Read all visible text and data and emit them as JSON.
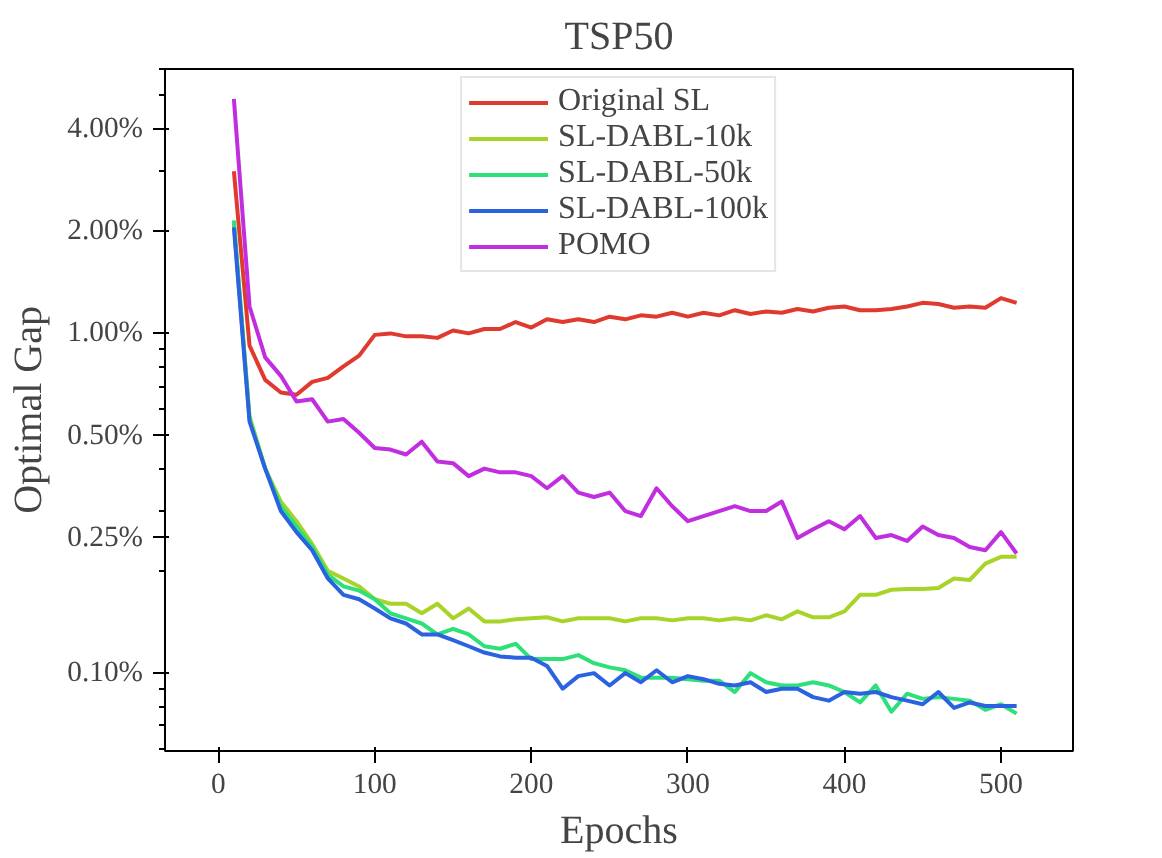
{
  "chart_data": {
    "type": "line",
    "title": "TSP50",
    "xlabel": "Epochs",
    "ylabel": "Optimal Gap",
    "log": "y",
    "grid": false,
    "legend": "top",
    "marker": "none",
    "line_style": "solid",
    "x": [
      10,
      20,
      30,
      40,
      50,
      60,
      70,
      80,
      90,
      100,
      110,
      120,
      130,
      140,
      150,
      160,
      170,
      180,
      190,
      200,
      210,
      220,
      230,
      240,
      250,
      260,
      270,
      280,
      290,
      300,
      310,
      320,
      330,
      340,
      350,
      360,
      370,
      380,
      390,
      400,
      410,
      420,
      430,
      440,
      450,
      460,
      470,
      480,
      490,
      500,
      510
    ],
    "xlim": [
      -34,
      546
    ],
    "xticks": [
      0,
      100,
      200,
      300,
      400,
      500
    ],
    "ylim": [
      0.059,
      6.0
    ],
    "yticks": [
      {
        "value": 0.06,
        "label": null
      },
      {
        "value": 0.07,
        "label": null
      },
      {
        "value": 0.08,
        "label": null
      },
      {
        "value": 0.09,
        "label": null
      },
      {
        "value": 0.1,
        "label": "0.10%"
      },
      {
        "value": 0.2,
        "label": null
      },
      {
        "value": 0.25,
        "label": "0.25%"
      },
      {
        "value": 0.3,
        "label": null
      },
      {
        "value": 0.4,
        "label": null
      },
      {
        "value": 0.5,
        "label": "0.50%"
      },
      {
        "value": 0.6,
        "label": null
      },
      {
        "value": 0.7,
        "label": null
      },
      {
        "value": 0.8,
        "label": null
      },
      {
        "value": 0.9,
        "label": null
      },
      {
        "value": 1.0,
        "label": "1.00%"
      },
      {
        "value": 2.0,
        "label": "2.00%"
      },
      {
        "value": 3.0,
        "label": null
      },
      {
        "value": 4.0,
        "label": "4.00%"
      },
      {
        "value": 5.0,
        "label": null
      },
      {
        "value": 6.0,
        "label": null
      }
    ],
    "series": [
      {
        "name": "Original SL",
        "color": "#e03a2f",
        "values": [
          3.0,
          0.92,
          0.73,
          0.67,
          0.66,
          0.72,
          0.74,
          0.8,
          0.86,
          0.99,
          1.0,
          0.98,
          0.98,
          0.97,
          1.02,
          1.0,
          1.03,
          1.03,
          1.08,
          1.04,
          1.1,
          1.08,
          1.1,
          1.08,
          1.12,
          1.1,
          1.13,
          1.12,
          1.15,
          1.12,
          1.15,
          1.13,
          1.17,
          1.14,
          1.16,
          1.15,
          1.18,
          1.16,
          1.19,
          1.2,
          1.17,
          1.17,
          1.18,
          1.2,
          1.23,
          1.22,
          1.19,
          1.2,
          1.19,
          1.27,
          1.23
        ]
      },
      {
        "name": "SL-DABL-10k",
        "color": "#a8d42a",
        "values": [
          2.1,
          0.57,
          0.4,
          0.32,
          0.28,
          0.24,
          0.2,
          0.19,
          0.18,
          0.165,
          0.16,
          0.16,
          0.15,
          0.16,
          0.145,
          0.155,
          0.142,
          0.142,
          0.144,
          0.145,
          0.146,
          0.142,
          0.145,
          0.145,
          0.145,
          0.142,
          0.145,
          0.145,
          0.143,
          0.145,
          0.145,
          0.143,
          0.145,
          0.143,
          0.148,
          0.144,
          0.152,
          0.146,
          0.146,
          0.152,
          0.17,
          0.17,
          0.176,
          0.177,
          0.177,
          0.178,
          0.19,
          0.188,
          0.21,
          0.22,
          0.22
        ]
      },
      {
        "name": "SL-DABL-50k",
        "color": "#2ee07a",
        "values": [
          2.15,
          0.56,
          0.4,
          0.31,
          0.27,
          0.235,
          0.195,
          0.18,
          0.175,
          0.165,
          0.15,
          0.145,
          0.14,
          0.13,
          0.135,
          0.13,
          0.12,
          0.118,
          0.122,
          0.11,
          0.11,
          0.11,
          0.113,
          0.107,
          0.104,
          0.102,
          0.097,
          0.097,
          0.097,
          0.096,
          0.095,
          0.095,
          0.088,
          0.1,
          0.094,
          0.092,
          0.092,
          0.094,
          0.092,
          0.088,
          0.082,
          0.092,
          0.077,
          0.087,
          0.084,
          0.085,
          0.084,
          0.083,
          0.078,
          0.081,
          0.076
        ]
      },
      {
        "name": "SL-DABL-100k",
        "color": "#2a62e0",
        "values": [
          2.05,
          0.55,
          0.4,
          0.3,
          0.26,
          0.23,
          0.19,
          0.17,
          0.165,
          0.155,
          0.145,
          0.14,
          0.13,
          0.13,
          0.125,
          0.12,
          0.115,
          0.112,
          0.111,
          0.111,
          0.105,
          0.09,
          0.098,
          0.1,
          0.092,
          0.1,
          0.094,
          0.102,
          0.094,
          0.098,
          0.096,
          0.093,
          0.092,
          0.094,
          0.088,
          0.09,
          0.09,
          0.085,
          0.083,
          0.088,
          0.087,
          0.088,
          0.085,
          0.083,
          0.081,
          0.088,
          0.079,
          0.082,
          0.08,
          0.08,
          0.08
        ]
      },
      {
        "name": "POMO",
        "color": "#c02ee0",
        "values": [
          4.9,
          1.2,
          0.85,
          0.75,
          0.63,
          0.64,
          0.55,
          0.56,
          0.51,
          0.46,
          0.455,
          0.44,
          0.48,
          0.42,
          0.415,
          0.38,
          0.4,
          0.39,
          0.39,
          0.38,
          0.35,
          0.38,
          0.34,
          0.33,
          0.34,
          0.3,
          0.29,
          0.35,
          0.31,
          0.28,
          0.29,
          0.3,
          0.31,
          0.3,
          0.3,
          0.32,
          0.25,
          0.265,
          0.28,
          0.265,
          0.29,
          0.25,
          0.255,
          0.245,
          0.27,
          0.255,
          0.25,
          0.235,
          0.23,
          0.26,
          0.225
        ]
      }
    ]
  }
}
